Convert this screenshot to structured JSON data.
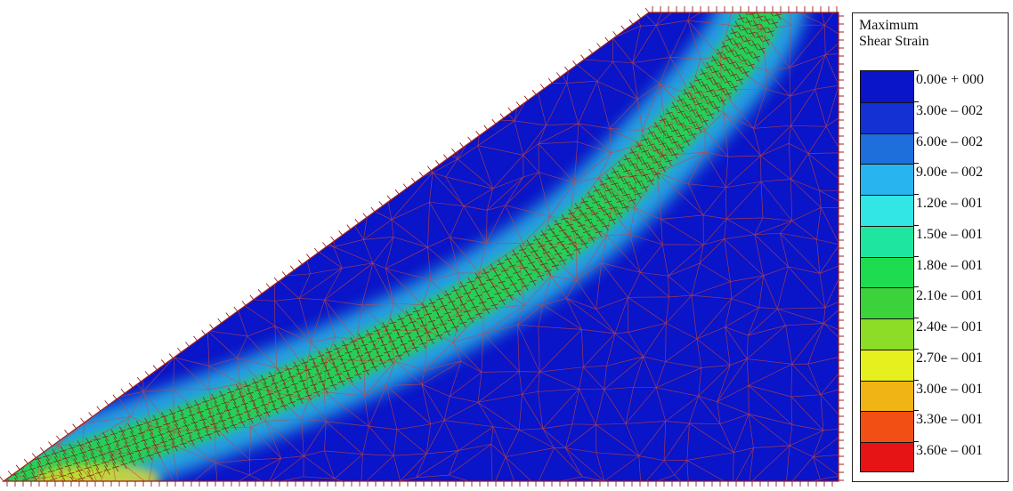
{
  "legend": {
    "title_line1": "Maximum",
    "title_line2": "Shear Strain",
    "entries": [
      {
        "label": "0.00e + 000",
        "color": "#0a14c8"
      },
      {
        "label": "3.00e – 002",
        "color": "#1432d2"
      },
      {
        "label": "6.00e – 002",
        "color": "#1e6edc"
      },
      {
        "label": "9.00e – 002",
        "color": "#28b4ee"
      },
      {
        "label": "1.20e – 001",
        "color": "#32e6e6"
      },
      {
        "label": "1.50e – 001",
        "color": "#1ee6a0"
      },
      {
        "label": "1.80e – 001",
        "color": "#1edc50"
      },
      {
        "label": "2.10e – 001",
        "color": "#3cd23c"
      },
      {
        "label": "2.40e – 001",
        "color": "#8cdc28"
      },
      {
        "label": "2.70e – 001",
        "color": "#e6f01e"
      },
      {
        "label": "3.00e – 001",
        "color": "#f0b414"
      },
      {
        "label": "3.30e – 001",
        "color": "#f05014"
      },
      {
        "label": "3.60e – 001",
        "color": "#e61414"
      }
    ]
  },
  "colors": {
    "mesh": "#c8463c",
    "background_field": "#0a14c8",
    "band_cyan": "#32d2e6",
    "band_green": "#28d250",
    "peak_yellow": "#e6dc28",
    "boundary": "#a01e1e"
  }
}
